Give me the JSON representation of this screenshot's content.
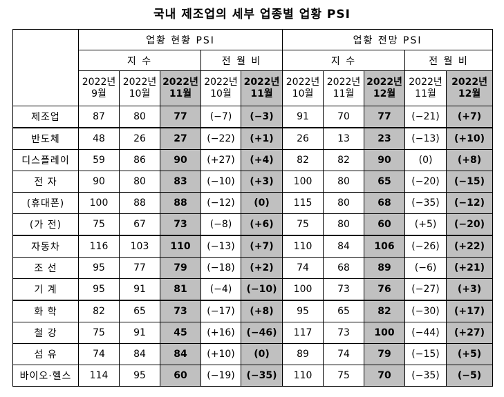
{
  "title": "국내 제조업의 세부 업종별 업황 PSI",
  "headers": {
    "current": "업황 현황 PSI",
    "outlook": "업황 전망 PSI",
    "index": "지 수",
    "mom": "전 월 비",
    "cur_cols": [
      [
        "2022년",
        "9월"
      ],
      [
        "2022년",
        "10월"
      ],
      [
        "2022년",
        "11월"
      ]
    ],
    "cur_mom_cols": [
      [
        "2022년",
        "10월"
      ],
      [
        "2022년",
        "11월"
      ]
    ],
    "out_cols": [
      [
        "2022년",
        "10월"
      ],
      [
        "2022년",
        "11월"
      ],
      [
        "2022년",
        "12월"
      ]
    ],
    "out_mom_cols": [
      [
        "2022년",
        "11월"
      ],
      [
        "2022년",
        "12월"
      ]
    ]
  },
  "rows": [
    {
      "label": "제조업",
      "v": [
        "87",
        "80",
        "77",
        "(−7)",
        "(−3)",
        "91",
        "70",
        "77",
        "(−21)",
        "(+7)"
      ]
    },
    {
      "label": "반도체",
      "v": [
        "48",
        "26",
        "27",
        "(−22)",
        "(+1)",
        "26",
        "13",
        "23",
        "(−13)",
        "(+10)"
      ]
    },
    {
      "label": "디스플레이",
      "v": [
        "59",
        "86",
        "90",
        "(+27)",
        "(+4)",
        "82",
        "82",
        "90",
        "(0)",
        "(+8)"
      ]
    },
    {
      "label": "전 자",
      "v": [
        "90",
        "80",
        "83",
        "(−10)",
        "(+3)",
        "100",
        "80",
        "65",
        "(−20)",
        "(−15)"
      ]
    },
    {
      "label": "(휴대폰)",
      "v": [
        "100",
        "88",
        "88",
        "(−12)",
        "(0)",
        "115",
        "80",
        "68",
        "(−35)",
        "(−12)"
      ]
    },
    {
      "label": "(가 전)",
      "v": [
        "75",
        "67",
        "73",
        "(−8)",
        "(+6)",
        "75",
        "80",
        "60",
        "(+5)",
        "(−20)"
      ]
    },
    {
      "label": "자동차",
      "v": [
        "116",
        "103",
        "110",
        "(−13)",
        "(+7)",
        "110",
        "84",
        "106",
        "(−26)",
        "(+22)"
      ]
    },
    {
      "label": "조 선",
      "v": [
        "95",
        "77",
        "79",
        "(−18)",
        "(+2)",
        "74",
        "68",
        "89",
        "(−6)",
        "(+21)"
      ]
    },
    {
      "label": "기 계",
      "v": [
        "95",
        "91",
        "81",
        "(−4)",
        "(−10)",
        "100",
        "73",
        "76",
        "(−27)",
        "(+3)"
      ]
    },
    {
      "label": "화 학",
      "v": [
        "82",
        "65",
        "73",
        "(−17)",
        "(+8)",
        "95",
        "65",
        "82",
        "(−30)",
        "(+17)"
      ]
    },
    {
      "label": "철 강",
      "v": [
        "75",
        "91",
        "45",
        "(+16)",
        "(−46)",
        "117",
        "73",
        "100",
        "(−44)",
        "(+27)"
      ]
    },
    {
      "label": "섬 유",
      "v": [
        "74",
        "84",
        "84",
        "(+10)",
        "(0)",
        "89",
        "74",
        "79",
        "(−15)",
        "(+5)"
      ]
    },
    {
      "label": "바이오·헬스",
      "v": [
        "114",
        "95",
        "60",
        "(−19)",
        "(−35)",
        "110",
        "75",
        "70",
        "(−35)",
        "(−5)"
      ]
    }
  ]
}
